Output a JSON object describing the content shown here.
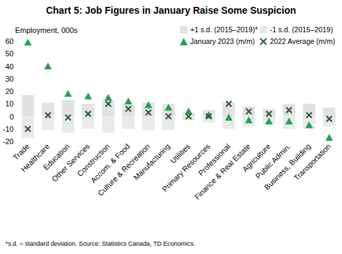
{
  "chart_data": {
    "type": "bar",
    "title": "Chart 5: Job Figures in January Raise Some Suspicion",
    "y_label": "Employment, 000s",
    "footnote": "*s.d. = standard deviation. Source: Statistics Canada, TD Economics.",
    "categories": [
      "Trade",
      "Healthcare",
      "Education",
      "Other Services",
      "Construction",
      "Accom. & Food",
      "Culture & Recreation",
      "Manufacturing",
      "Utilities",
      "Primary Resources",
      "Professional",
      "Finance & Real Estate",
      "Agriculture",
      "Public Admin.",
      "Business, Building",
      "Transportation"
    ],
    "series": [
      {
        "name": "+1 s.d. (2015–2019)*",
        "type": "bar",
        "color": "#e2e2e2",
        "values": [
          17,
          11,
          13,
          10,
          13,
          10,
          11,
          10,
          3,
          5,
          11,
          8,
          6,
          10,
          10,
          7
        ]
      },
      {
        "name": "-1 s.d. (2015–2019)",
        "type": "bar",
        "color": "#eaeaea",
        "values": [
          -17,
          -11,
          -13,
          -10,
          -13,
          -10,
          -11,
          -11,
          -3,
          -5,
          -10,
          -8,
          -6,
          -10,
          -10,
          -8
        ]
      },
      {
        "name": "January 2023 (m/m)",
        "type": "scatter",
        "marker": "triangle",
        "color": "#1ea44f",
        "values": [
          59,
          40,
          18,
          16,
          15,
          12,
          9,
          7,
          4,
          1,
          -1,
          -3,
          -4,
          -4,
          -7,
          -17
        ]
      },
      {
        "name": "2022 Average (m/m)",
        "type": "scatter",
        "marker": "x",
        "color": "#2f5a3a",
        "values": [
          -10,
          1,
          -1,
          2,
          10,
          6,
          3,
          0,
          0,
          0,
          10,
          4,
          2,
          5,
          1,
          -2
        ]
      }
    ],
    "ylim": [
      -20,
      60
    ],
    "yticks": [
      -20,
      -10,
      0,
      10,
      20,
      30,
      40,
      50,
      60
    ],
    "grid": false,
    "legend": "top-right"
  }
}
